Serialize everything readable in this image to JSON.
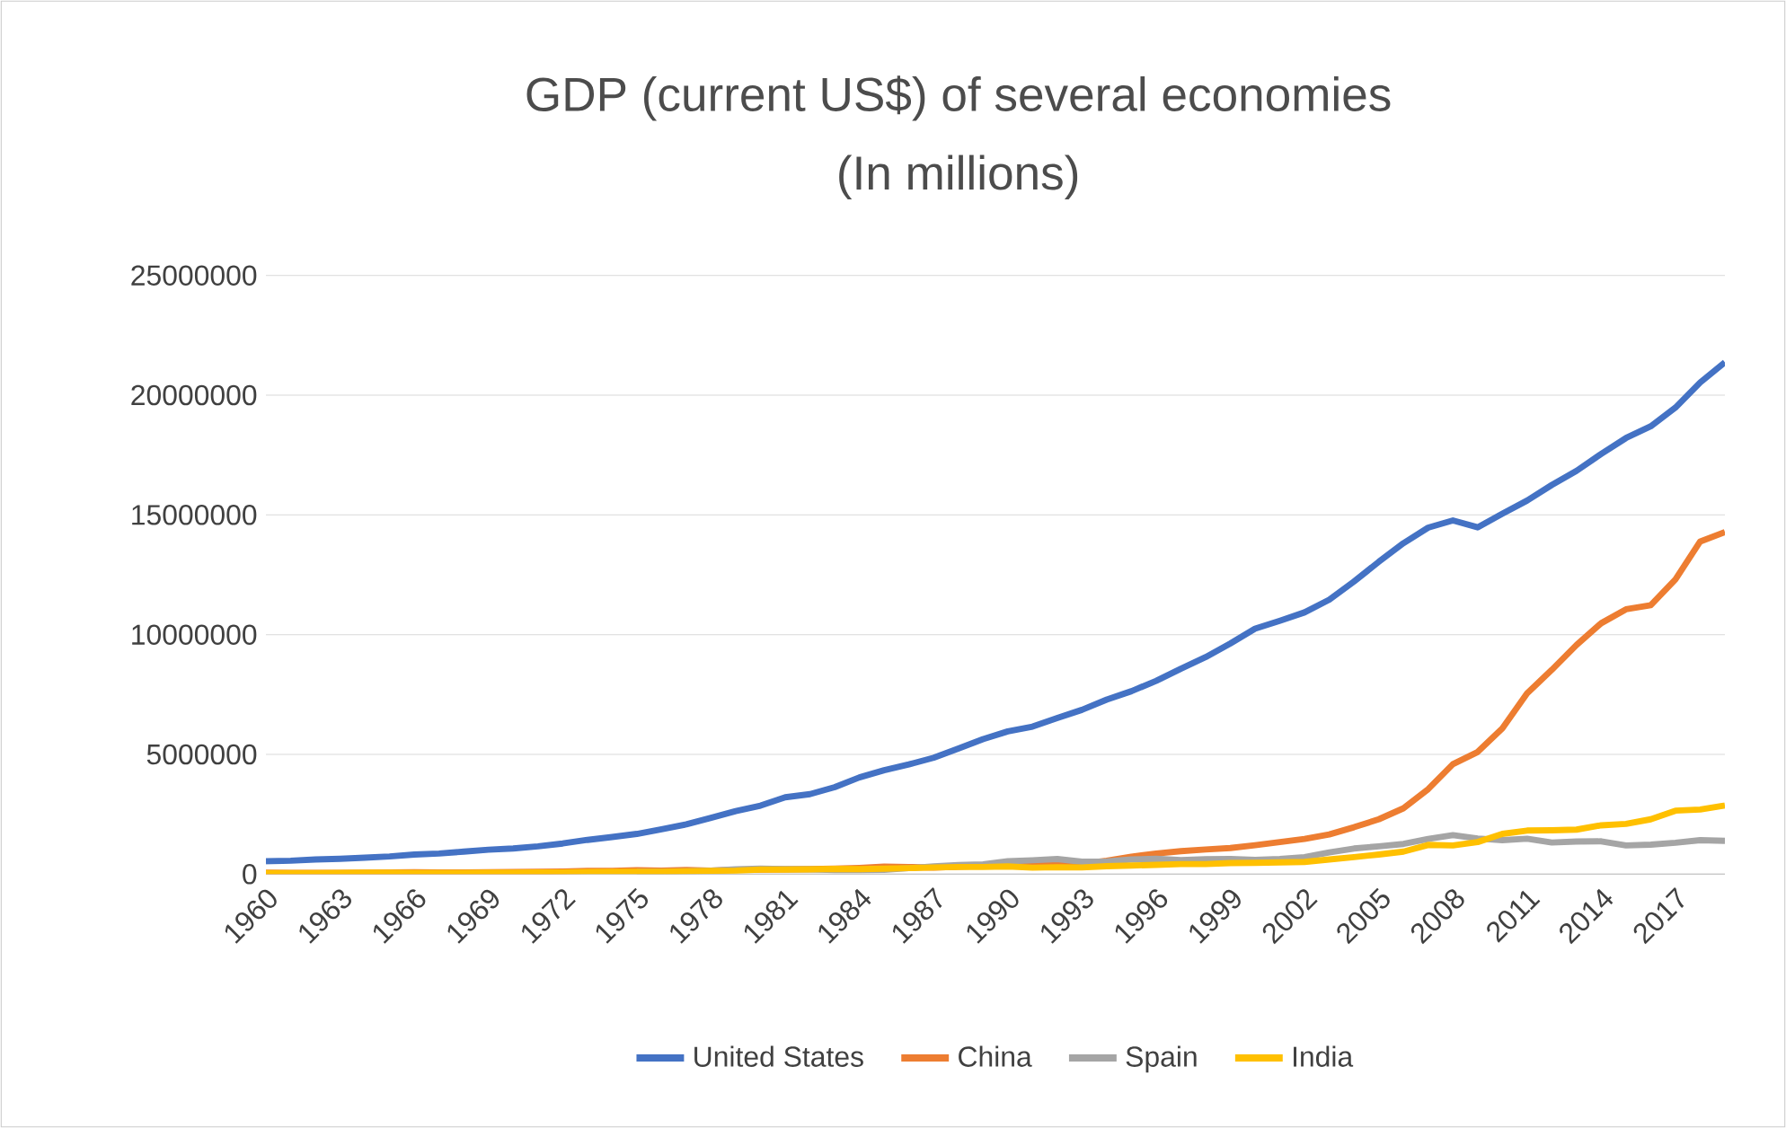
{
  "chart_data": {
    "type": "line",
    "title": "GDP (current US$) of several economies",
    "subtitle": "(In millions)",
    "categories": [
      "1960",
      null,
      null,
      "1963",
      null,
      null,
      "1966",
      null,
      null,
      "1969",
      null,
      null,
      "1972",
      null,
      null,
      "1975",
      null,
      null,
      "1978",
      null,
      null,
      "1981",
      null,
      null,
      "1984",
      null,
      null,
      "1987",
      null,
      null,
      "1990",
      null,
      null,
      "1993",
      null,
      null,
      "1996",
      null,
      null,
      "1999",
      null,
      null,
      "2002",
      null,
      null,
      "2005",
      null,
      null,
      "2008",
      null,
      null,
      "2011",
      null,
      null,
      "2014",
      null,
      null,
      "2017",
      null,
      null
    ],
    "series": [
      {
        "name": "United States",
        "color": "#4472c4",
        "values": [
          540000,
          560000,
          610000,
          640000,
          690000,
          740000,
          820000,
          860000,
          940000,
          1020000,
          1070000,
          1160000,
          1280000,
          1430000,
          1550000,
          1680000,
          1870000,
          2080000,
          2350000,
          2630000,
          2860000,
          3210000,
          3340000,
          3630000,
          4040000,
          4340000,
          4580000,
          4860000,
          5240000,
          5640000,
          5960000,
          6160000,
          6520000,
          6860000,
          7290000,
          7640000,
          8070000,
          8580000,
          9060000,
          9630000,
          10250000,
          10580000,
          10930000,
          11460000,
          12220000,
          13040000,
          13820000,
          14470000,
          14770000,
          14480000,
          15050000,
          15600000,
          16250000,
          16840000,
          17550000,
          18210000,
          18700000,
          19480000,
          20530000,
          21370000
        ]
      },
      {
        "name": "China",
        "color": "#ed7d31",
        "values": [
          60000,
          50000,
          50000,
          50000,
          60000,
          70000,
          80000,
          70000,
          70000,
          80000,
          90000,
          100000,
          110000,
          140000,
          140000,
          160000,
          150000,
          170000,
          150000,
          180000,
          190000,
          200000,
          210000,
          230000,
          260000,
          310000,
          300000,
          270000,
          310000,
          350000,
          360000,
          380000,
          430000,
          440000,
          560000,
          730000,
          860000,
          960000,
          1030000,
          1090000,
          1210000,
          1340000,
          1470000,
          1660000,
          1960000,
          2290000,
          2750000,
          3550000,
          4590000,
          5100000,
          6090000,
          7550000,
          8530000,
          9570000,
          10480000,
          11060000,
          11230000,
          12310000,
          13890000,
          14280000
        ]
      },
      {
        "name": "Spain",
        "color": "#a5a5a5",
        "values": [
          null,
          null,
          null,
          null,
          null,
          null,
          null,
          null,
          null,
          null,
          null,
          null,
          null,
          null,
          null,
          110000,
          110000,
          120000,
          150000,
          200000,
          230000,
          210000,
          200000,
          170000,
          170000,
          180000,
          250000,
          320000,
          380000,
          410000,
          540000,
          580000,
          630000,
          520000,
          530000,
          610000,
          640000,
          590000,
          620000,
          630000,
          600000,
          630000,
          710000,
          910000,
          1070000,
          1160000,
          1260000,
          1470000,
          1630000,
          1490000,
          1420000,
          1480000,
          1320000,
          1360000,
          1370000,
          1200000,
          1230000,
          1310000,
          1420000,
          1390000
        ]
      },
      {
        "name": "India",
        "color": "#ffc000",
        "values": [
          40000,
          40000,
          40000,
          50000,
          60000,
          60000,
          50000,
          50000,
          50000,
          60000,
          60000,
          70000,
          70000,
          90000,
          100000,
          100000,
          100000,
          120000,
          140000,
          150000,
          190000,
          190000,
          200000,
          220000,
          210000,
          230000,
          250000,
          280000,
          300000,
          300000,
          320000,
          270000,
          290000,
          280000,
          330000,
          360000,
          390000,
          420000,
          420000,
          460000,
          470000,
          490000,
          510000,
          610000,
          710000,
          820000,
          940000,
          1220000,
          1200000,
          1340000,
          1680000,
          1820000,
          1830000,
          1860000,
          2040000,
          2100000,
          2290000,
          2650000,
          2700000,
          2870000
        ]
      }
    ],
    "ylim": [
      0,
      25000000
    ],
    "yticks": [
      0,
      5000000,
      10000000,
      15000000,
      20000000,
      25000000
    ],
    "grid": "y",
    "legend": "bottom"
  }
}
